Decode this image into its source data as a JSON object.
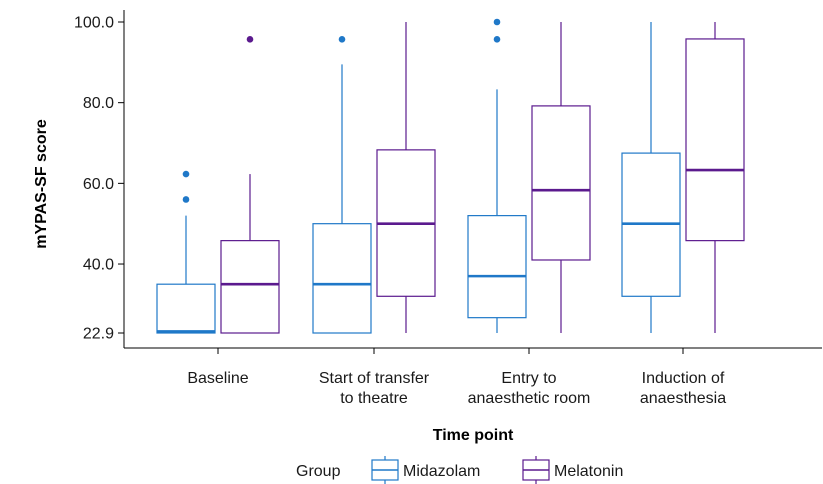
{
  "chart_data": {
    "type": "boxplot",
    "xlabel": "Time point",
    "ylabel": "mYPAS-SF score",
    "ylim": [
      22.9,
      100
    ],
    "yticks": [
      "22.9",
      "40.0",
      "60.0",
      "80.0",
      "100.0"
    ],
    "ytick_values": [
      22.9,
      40,
      60,
      80,
      100
    ],
    "categories": [
      [
        "Baseline"
      ],
      [
        "Start of transfer",
        "to theatre"
      ],
      [
        "Entry to",
        "anaesthetic room"
      ],
      [
        "Induction of",
        "anaesthesia"
      ]
    ],
    "legend": {
      "title": "Group",
      "position": "bottom"
    },
    "series": [
      {
        "name": "Midazolam",
        "color": "#1f78c8",
        "boxes": [
          {
            "whisker_low": 22.9,
            "q1": 22.9,
            "median": 23.3,
            "q3": 35.0,
            "whisker_high": 52.0,
            "outliers": [
              56.0,
              62.3
            ]
          },
          {
            "whisker_low": 22.9,
            "q1": 22.9,
            "median": 35.0,
            "q3": 50.0,
            "whisker_high": 89.5,
            "outliers": [
              95.7
            ]
          },
          {
            "whisker_low": 22.9,
            "q1": 26.7,
            "median": 37.0,
            "q3": 52.0,
            "whisker_high": 83.3,
            "outliers": [
              95.7,
              100.0
            ]
          },
          {
            "whisker_low": 22.9,
            "q1": 32.0,
            "median": 50.0,
            "q3": 67.5,
            "whisker_high": 100.0,
            "outliers": []
          }
        ]
      },
      {
        "name": "Melatonin",
        "color": "#5b1a8e",
        "boxes": [
          {
            "whisker_low": 22.9,
            "q1": 22.9,
            "median": 35.0,
            "q3": 45.8,
            "whisker_high": 62.3,
            "outliers": [
              95.7
            ]
          },
          {
            "whisker_low": 22.9,
            "q1": 32.0,
            "median": 50.0,
            "q3": 68.3,
            "whisker_high": 100.0,
            "outliers": []
          },
          {
            "whisker_low": 22.9,
            "q1": 41.0,
            "median": 58.3,
            "q3": 79.2,
            "whisker_high": 100.0,
            "outliers": []
          },
          {
            "whisker_low": 22.9,
            "q1": 45.8,
            "median": 63.3,
            "q3": 95.8,
            "whisker_high": 100.0,
            "outliers": []
          }
        ]
      }
    ]
  }
}
